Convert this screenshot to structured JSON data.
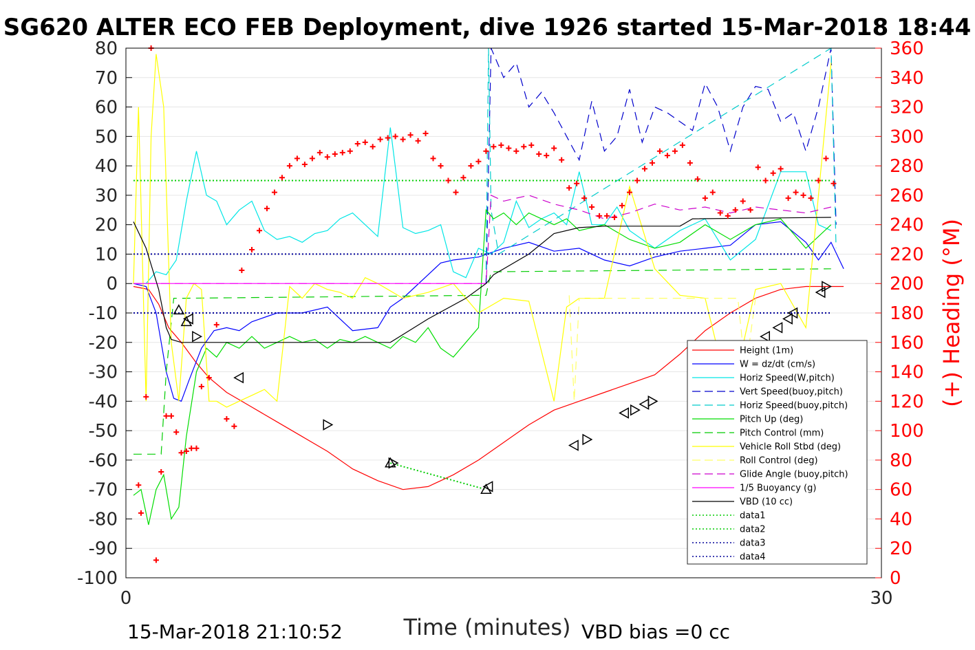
{
  "chart_data": {
    "type": "line",
    "title": "SG620 ALTER ECO FEB Deployment, dive 1926 started 15-Mar-2018 18:44",
    "xlabel": "Time (minutes)",
    "ylabel_right": "(+) Heading (°M)",
    "xlim": [
      0,
      30
    ],
    "ylim": [
      -100,
      80
    ],
    "ylim_right": [
      0,
      360
    ],
    "x_ticks": [
      0,
      30
    ],
    "y_ticks": [
      80,
      70,
      60,
      50,
      40,
      30,
      20,
      10,
      0,
      -10,
      -20,
      -30,
      -40,
      -50,
      -60,
      -70,
      -80,
      -90,
      -100
    ],
    "y_ticks_right": [
      360,
      340,
      320,
      300,
      280,
      260,
      240,
      220,
      200,
      180,
      160,
      140,
      120,
      100,
      80,
      60,
      40,
      20,
      0
    ],
    "grid": true,
    "legend_position": "lower-right",
    "footer_left": "15-Mar-2018 21:10:52",
    "footer_right": "VBD bias =0 cc",
    "colors": {
      "axis": "#000000",
      "right_axis": "#ff0000",
      "grid": "#e6e6e6"
    },
    "series": [
      {
        "name": "Height (1m)",
        "color": "#ff0000",
        "dash": "solid",
        "x": [
          0.3,
          0.9,
          1.3,
          1.7,
          2.2,
          2.8,
          3.3,
          4.0,
          5.0,
          6.0,
          7.0,
          8.0,
          9.0,
          10.0,
          11.0,
          12.0,
          13.0,
          14.0,
          15.0,
          16.0,
          17.0,
          18.0,
          19.0,
          20.0,
          21.0,
          22.0,
          23.0,
          24.0,
          25.0,
          26.0,
          27.0,
          28.0,
          28.5
        ],
        "values": [
          -1,
          -2,
          -7,
          -15,
          -20,
          -27,
          -32,
          -37,
          -42,
          -47,
          -52,
          -57,
          -63,
          -67,
          -70,
          -69,
          -65,
          -60,
          -54,
          -48,
          -43,
          -40,
          -37,
          -34,
          -31,
          -24,
          -16,
          -10,
          -5,
          -2,
          -1,
          -1,
          -1
        ]
      },
      {
        "name": "W = dz/dt (cm/s)",
        "color": "#0000ff",
        "dash": "solid",
        "x": [
          0.3,
          0.8,
          1.2,
          1.6,
          1.9,
          2.2,
          2.5,
          3.0,
          3.5,
          4.0,
          4.5,
          5.0,
          6.0,
          7.0,
          8.0,
          9.0,
          10.0,
          10.5,
          11.0,
          11.5,
          12.0,
          12.5,
          13.0,
          14.0,
          15.0,
          16.0,
          17.0,
          18.0,
          19.0,
          20.0,
          21.0,
          22.0,
          23.0,
          24.0,
          25.0,
          26.0,
          27.0,
          27.5,
          28.0,
          28.5
        ],
        "values": [
          0,
          -1,
          -10,
          -30,
          -39,
          -40,
          -33,
          -22,
          -16,
          -15,
          -16,
          -13,
          -10,
          -10,
          -8,
          -16,
          -15,
          -8,
          -5,
          -1,
          3,
          7,
          8,
          9,
          12,
          14,
          11,
          12,
          8,
          6,
          9,
          11,
          12,
          13,
          20,
          21,
          14,
          8,
          14,
          5
        ]
      },
      {
        "name": "Horiz Speed(W,pitch)",
        "color": "#00e6e6",
        "dash": "solid",
        "x": [
          0.3,
          0.8,
          1.2,
          1.6,
          2.0,
          2.4,
          2.8,
          3.2,
          3.6,
          4.0,
          4.5,
          5.0,
          5.5,
          6.0,
          6.5,
          7.0,
          7.5,
          8.0,
          8.5,
          9.0,
          9.5,
          10.0,
          10.5,
          11.0,
          11.5,
          12.0,
          12.5,
          13.0,
          13.5,
          14.0,
          14.5,
          15.0,
          15.5,
          16.0,
          16.5,
          17.0,
          17.5,
          18.0,
          18.5,
          19.0,
          19.5,
          20.0,
          21.0,
          22.0,
          23.0,
          24.0,
          25.0,
          26.0,
          27.0,
          27.5,
          28.0
        ],
        "values": [
          0,
          0,
          4,
          3,
          8,
          28,
          45,
          30,
          28,
          20,
          25,
          28,
          18,
          15,
          16,
          14,
          17,
          18,
          22,
          24,
          20,
          16,
          53,
          19,
          17,
          18,
          20,
          4,
          2,
          12,
          10,
          14,
          28,
          19,
          22,
          24,
          20,
          38,
          20,
          20,
          26,
          18,
          12,
          18,
          22,
          8,
          15,
          38,
          38,
          20,
          18
        ]
      },
      {
        "name": "Vert Speed(buoy,pitch)",
        "color": "#0000cc",
        "dash": "dash",
        "x": [
          14.3,
          14.5,
          15.0,
          15.5,
          16.0,
          16.5,
          17.0,
          17.5,
          18.0,
          18.5,
          19.0,
          19.5,
          20.0,
          20.5,
          21.0,
          21.5,
          22.0,
          22.5,
          23.0,
          23.5,
          24.0,
          24.5,
          25.0,
          25.5,
          26.0,
          26.5,
          27.0,
          27.5,
          28.0,
          28.2
        ],
        "values": [
          0,
          80,
          70,
          75,
          60,
          65,
          58,
          50,
          42,
          62,
          45,
          50,
          66,
          48,
          60,
          58,
          55,
          52,
          68,
          60,
          45,
          60,
          67,
          66,
          55,
          58,
          45,
          60,
          80,
          20
        ]
      },
      {
        "name": "Horiz Speed(buoy,pitch)",
        "color": "#00cccc",
        "dash": "dash",
        "x": [
          14.3,
          14.4,
          14.5,
          14.8,
          28.0,
          28.2
        ],
        "values": [
          5,
          80,
          25,
          10,
          80,
          12
        ]
      },
      {
        "name": "Pitch Up (deg)",
        "color": "#00dd00",
        "dash": "solid",
        "x": [
          0.3,
          0.6,
          0.9,
          1.2,
          1.5,
          1.8,
          2.1,
          2.4,
          2.8,
          3.2,
          3.6,
          4.0,
          4.5,
          5.0,
          5.5,
          6.0,
          6.5,
          7.0,
          7.5,
          8.0,
          8.5,
          9.0,
          9.5,
          10.0,
          10.5,
          11.0,
          11.5,
          12.0,
          12.5,
          13.0,
          13.5,
          14.0,
          14.3,
          14.6,
          15.0,
          15.5,
          16.0,
          16.5,
          17.0,
          17.5,
          18.0,
          19.0,
          20.0,
          21.0,
          22.0,
          23.0,
          24.0,
          25.0,
          26.0,
          27.0,
          28.0
        ],
        "values": [
          -72,
          -70,
          -82,
          -70,
          -65,
          -80,
          -76,
          -52,
          -30,
          -22,
          -25,
          -20,
          -22,
          -18,
          -22,
          -20,
          -18,
          -20,
          -19,
          -22,
          -19,
          -20,
          -18,
          -20,
          -22,
          -18,
          -20,
          -15,
          -22,
          -25,
          -20,
          -15,
          25,
          22,
          24,
          20,
          24,
          22,
          20,
          22,
          18,
          20,
          15,
          12,
          14,
          20,
          15,
          20,
          22,
          12,
          20
        ]
      },
      {
        "name": "Pitch Control (mm)",
        "color": "#00cc00",
        "dash": "dash",
        "x": [
          0.3,
          1.4,
          1.6,
          1.9,
          2.3,
          14.3,
          14.5,
          28.0
        ],
        "values": [
          -58,
          -58,
          -30,
          -5,
          -5,
          -4,
          4,
          5
        ]
      },
      {
        "name": "Vehicle Roll Stbd (deg)",
        "color": "#ffff00",
        "dash": "solid",
        "x": [
          0.3,
          0.5,
          0.8,
          1.0,
          1.2,
          1.5,
          1.8,
          2.1,
          2.4,
          2.7,
          3.0,
          3.3,
          3.6,
          4.0,
          4.5,
          5.0,
          5.5,
          6.0,
          6.5,
          7.0,
          7.5,
          8.0,
          8.5,
          9.0,
          9.5,
          10.0,
          11.0,
          12.0,
          13.0,
          14.0,
          15.0,
          16.0,
          17.0,
          17.5,
          18.0,
          19.0,
          20.0,
          21.0,
          22.0,
          23.0,
          24.0,
          25.0,
          26.0,
          27.0,
          28.0
        ],
        "values": [
          0,
          60,
          -40,
          50,
          78,
          60,
          -20,
          -40,
          -5,
          0,
          -2,
          -40,
          -40,
          -42,
          -40,
          -38,
          -36,
          -40,
          -1,
          -5,
          0,
          -2,
          -3,
          -5,
          2,
          0,
          -5,
          -3,
          0,
          -10,
          -5,
          -6,
          -40,
          -8,
          -5,
          -5,
          33,
          5,
          -4,
          -5,
          -40,
          -2,
          0,
          -15,
          75
        ]
      },
      {
        "name": "Roll Control (deg)",
        "color": "#ffff66",
        "dash": "dash",
        "x": [
          17.6,
          17.8,
          18.0,
          24.3,
          24.6,
          25.0
        ],
        "values": [
          -4,
          -40,
          -5,
          -5,
          -30,
          -5
        ]
      },
      {
        "name": "Glide Angle (buoy,pitch)",
        "color": "#cc00cc",
        "dash": "dash",
        "x": [
          0.3,
          14.3,
          14.5,
          15.0,
          16.0,
          17.0,
          18.0,
          19.0,
          20.0,
          21.0,
          22.0,
          23.0,
          24.0,
          25.0,
          26.0,
          27.0,
          28.0
        ],
        "values": [
          0,
          0,
          30,
          28,
          30,
          27,
          25,
          22,
          24,
          27,
          25,
          26,
          24,
          26,
          25,
          24,
          26
        ]
      },
      {
        "name": "1/5 Buoyancy (g)",
        "color": "#ff00ff",
        "dash": "solid",
        "x": [
          0.3,
          14.3
        ],
        "values": [
          0,
          0
        ]
      },
      {
        "name": "VBD (10 cc)",
        "color": "#000000",
        "dash": "solid",
        "x": [
          0.3,
          0.8,
          1.3,
          1.6,
          1.8,
          2.2,
          3.0,
          10.5,
          12.0,
          13.5,
          14.3,
          14.6,
          16.0,
          17.0,
          18.0,
          19.0,
          20.0,
          22.0,
          22.5,
          28.0
        ],
        "values": [
          21,
          12,
          -2,
          -15,
          -19,
          -20,
          -20,
          -20,
          -12,
          -5,
          0,
          3,
          10,
          17,
          19,
          19.5,
          19.5,
          19.5,
          22,
          22.5
        ]
      },
      {
        "name": "data1",
        "color": "#00cc00",
        "dash": "dot",
        "x": [
          0.3,
          28.0
        ],
        "values": [
          35,
          35
        ]
      },
      {
        "name": "data2",
        "color": "#00cc00",
        "dash": "dot",
        "x": [
          10.5,
          14.3
        ],
        "values": [
          -61,
          -70
        ]
      },
      {
        "name": "data3",
        "color": "#000099",
        "dash": "dot",
        "x": [
          0.3,
          28.0
        ],
        "values": [
          10,
          10
        ]
      },
      {
        "name": "data4",
        "color": "#000099",
        "dash": "dot",
        "x": [
          0.3,
          28.0
        ],
        "values": [
          -10,
          -10
        ]
      }
    ],
    "heading_series": {
      "marker": "+",
      "color": "#ff0000",
      "x": [
        0.5,
        0.6,
        0.8,
        1.0,
        1.2,
        1.4,
        1.6,
        1.8,
        2.0,
        2.2,
        2.4,
        2.6,
        2.8,
        3.0,
        3.3,
        3.6,
        4.0,
        4.3,
        4.6,
        5.0,
        5.3,
        5.6,
        5.9,
        6.2,
        6.5,
        6.8,
        7.1,
        7.4,
        7.7,
        8.0,
        8.3,
        8.6,
        8.9,
        9.2,
        9.5,
        9.8,
        10.1,
        10.4,
        10.7,
        11.0,
        11.3,
        11.6,
        11.9,
        12.2,
        12.5,
        12.8,
        13.1,
        13.4,
        13.7,
        14.0,
        14.3,
        14.6,
        14.9,
        15.2,
        15.5,
        15.8,
        16.1,
        16.4,
        16.7,
        17.0,
        17.3,
        17.6,
        17.9,
        18.2,
        18.5,
        18.8,
        19.1,
        19.4,
        19.7,
        20.0,
        20.3,
        20.6,
        20.9,
        21.2,
        21.5,
        21.8,
        22.1,
        22.4,
        22.7,
        23.0,
        23.3,
        23.6,
        23.9,
        24.2,
        24.5,
        24.8,
        25.1,
        25.4,
        25.7,
        26.0,
        26.3,
        26.6,
        26.9,
        27.2,
        27.5,
        27.8,
        28.1
      ],
      "values": [
        63,
        44,
        123,
        360,
        12,
        72,
        110,
        110,
        99,
        85,
        86,
        88,
        88,
        130,
        136,
        172,
        108,
        103,
        209,
        223,
        236,
        251,
        262,
        272,
        280,
        285,
        281,
        285,
        289,
        286,
        288,
        289,
        290,
        295,
        296,
        293,
        298,
        299,
        300,
        298,
        301,
        297,
        302,
        285,
        280,
        270,
        262,
        272,
        280,
        283,
        290,
        293,
        294,
        292,
        290,
        293,
        294,
        288,
        287,
        292,
        284,
        265,
        268,
        258,
        252,
        246,
        246,
        245,
        253,
        262,
        270,
        278,
        282,
        290,
        287,
        290,
        294,
        282,
        271,
        258,
        262,
        248,
        246,
        250,
        256,
        250,
        279,
        270,
        275,
        278,
        258,
        262,
        260,
        258,
        270,
        285,
        268
      ]
    },
    "triangle_markers": {
      "color": "#000000",
      "points": [
        {
          "x": 2.1,
          "y": -9,
          "dir": "up"
        },
        {
          "x": 2.4,
          "y": -13,
          "dir": "up"
        },
        {
          "x": 2.5,
          "y": -12,
          "dir": "left"
        },
        {
          "x": 2.8,
          "y": -18,
          "dir": "right"
        },
        {
          "x": 4.5,
          "y": -32,
          "dir": "left"
        },
        {
          "x": 8.0,
          "y": -48,
          "dir": "right"
        },
        {
          "x": 10.5,
          "y": -61,
          "dir": "up"
        },
        {
          "x": 10.6,
          "y": -61,
          "dir": "right"
        },
        {
          "x": 14.3,
          "y": -70,
          "dir": "up"
        },
        {
          "x": 14.4,
          "y": -69,
          "dir": "left"
        },
        {
          "x": 17.8,
          "y": -55,
          "dir": "left"
        },
        {
          "x": 18.3,
          "y": -53,
          "dir": "right"
        },
        {
          "x": 19.8,
          "y": -44,
          "dir": "left"
        },
        {
          "x": 20.2,
          "y": -43,
          "dir": "right"
        },
        {
          "x": 20.6,
          "y": -41,
          "dir": "left"
        },
        {
          "x": 20.9,
          "y": -40,
          "dir": "right"
        },
        {
          "x": 22.9,
          "y": -34,
          "dir": "left"
        },
        {
          "x": 23.3,
          "y": -33,
          "dir": "right"
        },
        {
          "x": 23.9,
          "y": -30,
          "dir": "right"
        },
        {
          "x": 25.4,
          "y": -18,
          "dir": "left"
        },
        {
          "x": 25.9,
          "y": -15,
          "dir": "left"
        },
        {
          "x": 26.3,
          "y": -12,
          "dir": "left"
        },
        {
          "x": 26.5,
          "y": -10,
          "dir": "left"
        },
        {
          "x": 27.6,
          "y": -3,
          "dir": "left"
        },
        {
          "x": 27.8,
          "y": -1,
          "dir": "right"
        }
      ]
    }
  }
}
